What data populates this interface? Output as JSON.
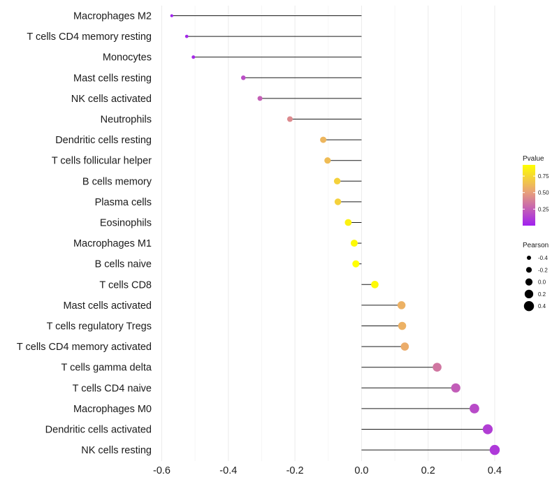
{
  "chart_data": {
    "type": "lollipop",
    "orientation": "horizontal",
    "categories": [
      "Macrophages M2",
      "T cells CD4 memory resting",
      "Monocytes",
      "Mast cells resting",
      "NK cells activated",
      "Neutrophils",
      "Dendritic cells resting",
      "T cells follicular helper",
      "B cells memory",
      "Plasma cells",
      "Eosinophils",
      "Macrophages M1",
      "B cells naive",
      "T cells CD8",
      "Mast cells activated",
      "T cells regulatory  Tregs ",
      "T cells CD4 memory activated",
      "T cells gamma delta",
      "T cells CD4 naive",
      "Macrophages M0",
      "Dendritic cells activated",
      "NK cells resting"
    ],
    "values": [
      -0.57,
      -0.525,
      -0.505,
      -0.355,
      -0.305,
      -0.215,
      -0.115,
      -0.102,
      -0.073,
      -0.071,
      -0.04,
      -0.022,
      -0.017,
      0.04,
      0.12,
      0.122,
      0.13,
      0.227,
      0.283,
      0.339,
      0.379,
      0.4
    ],
    "pvalues": [
      0.01,
      0.03,
      0.04,
      0.18,
      0.25,
      0.42,
      0.6,
      0.63,
      0.72,
      0.72,
      0.86,
      0.9,
      0.92,
      0.9,
      0.58,
      0.58,
      0.56,
      0.34,
      0.24,
      0.17,
      0.12,
      0.1
    ],
    "xlim": [
      -0.6,
      0.4
    ],
    "xticks": [
      -0.6,
      -0.4,
      -0.2,
      0.0,
      0.2,
      0.4
    ],
    "xtick_labels": [
      "-0.6",
      "-0.4",
      "-0.2",
      "0.0",
      "0.2",
      "0.4"
    ],
    "title": "",
    "xlabel": "",
    "ylabel": "",
    "grid": true,
    "color_legend": {
      "title": "Pvalue",
      "breaks": [
        0.25,
        0.5,
        0.75
      ],
      "labels": [
        "0.25",
        "0.50",
        "0.75"
      ],
      "range": [
        0.0,
        0.92
      ],
      "low_color": "#a020f0",
      "mid_color": "#e8a07a",
      "high_color": "#ffff00"
    },
    "size_legend": {
      "title": "Pearson",
      "breaks": [
        -0.4,
        -0.2,
        0.0,
        0.2,
        0.4
      ],
      "labels": [
        "-0.4",
        "-0.2",
        "0.0",
        "0.2",
        "0.4"
      ]
    }
  }
}
